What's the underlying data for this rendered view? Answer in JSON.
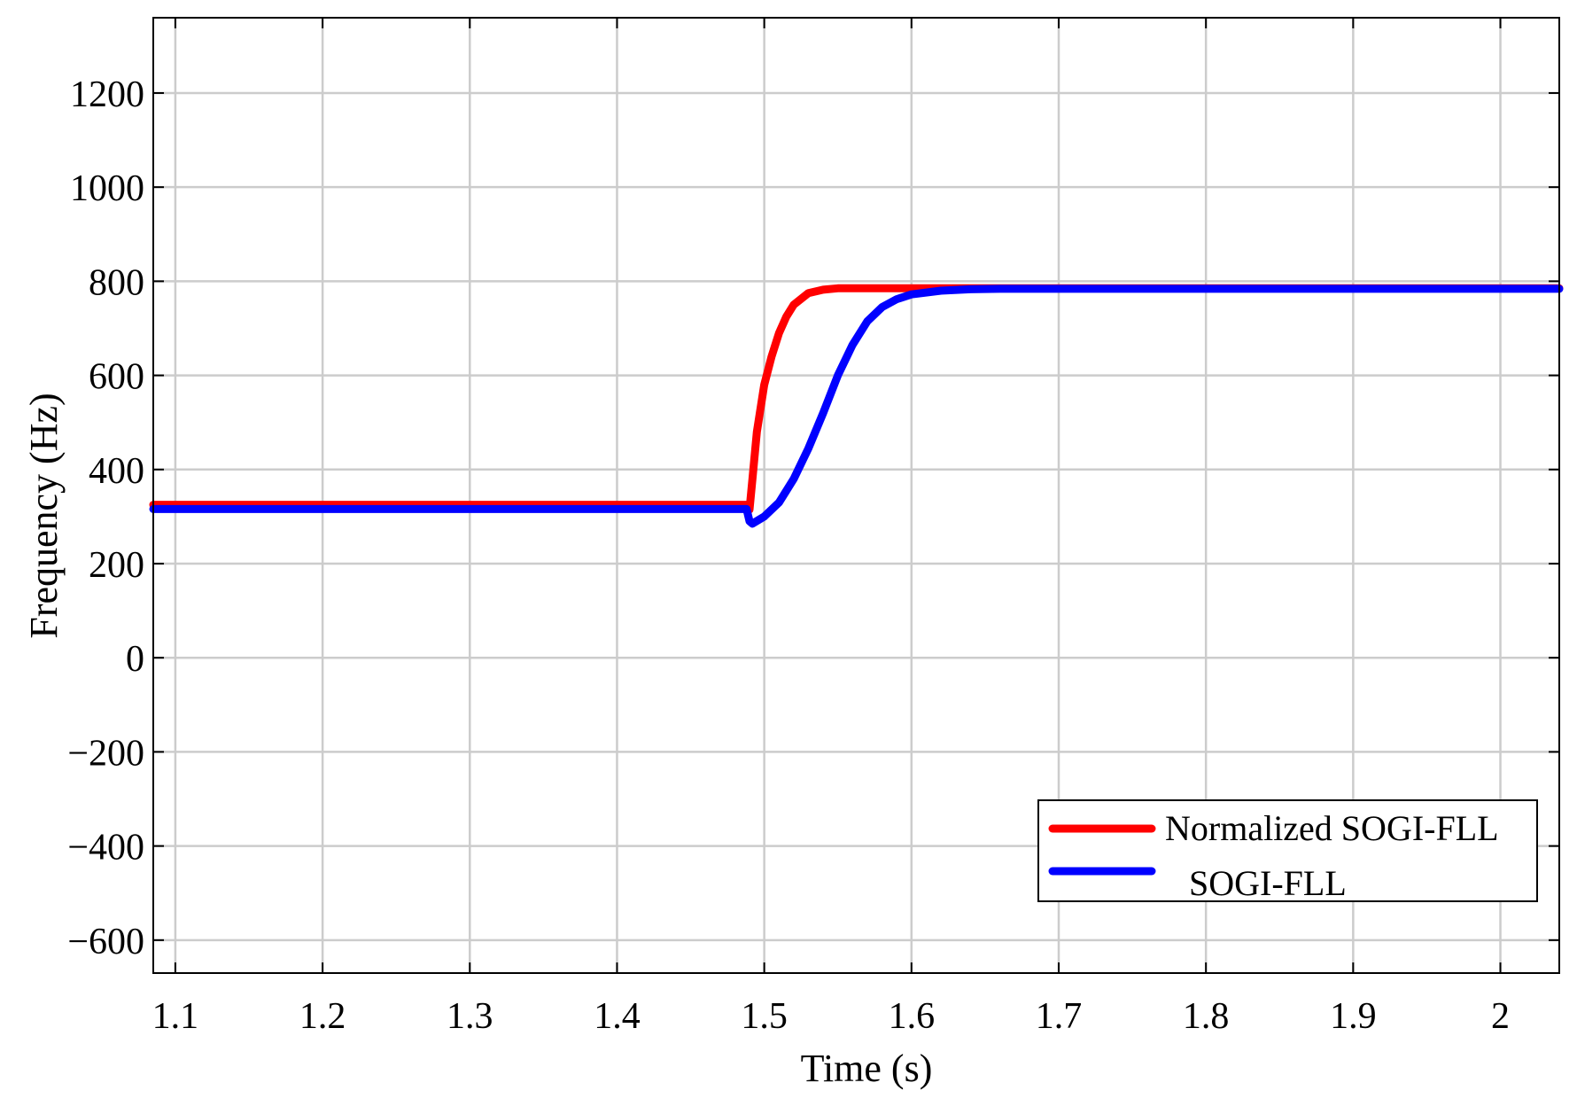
{
  "chart_data": {
    "type": "line",
    "title": "",
    "xlabel": "Time (s)",
    "ylabel": "Frequency (Hz)",
    "xlim": [
      1.085,
      2.04
    ],
    "ylim": [
      -670,
      1360
    ],
    "xticks": [
      1.1,
      1.2,
      1.3,
      1.4,
      1.5,
      1.6,
      1.7,
      1.8,
      1.9,
      2
    ],
    "xtick_labels": [
      "1.1",
      "1.2",
      "1.3",
      "1.4",
      "1.5",
      "1.6",
      "1.7",
      "1.8",
      "1.9",
      "2"
    ],
    "yticks": [
      1200,
      1000,
      800,
      600,
      400,
      200,
      0,
      -200,
      -400,
      -600
    ],
    "ytick_labels": [
      "1200",
      "1000",
      "800",
      "600",
      "400",
      "200",
      "0",
      "−200",
      "−400",
      "−600"
    ],
    "grid": true,
    "legend_position": "bottom-right",
    "series": [
      {
        "name": "Normalized SOGI-FLL",
        "color": "#ff0000",
        "x": [
          1.085,
          1.489,
          1.49,
          1.492,
          1.495,
          1.5,
          1.505,
          1.51,
          1.515,
          1.52,
          1.53,
          1.54,
          1.55,
          1.56,
          1.57,
          1.6,
          1.7,
          1.8,
          1.9,
          2.04
        ],
        "y": [
          325,
          325,
          315,
          380,
          480,
          580,
          640,
          690,
          725,
          750,
          775,
          782,
          785,
          785,
          785,
          785,
          785,
          785,
          785,
          785
        ]
      },
      {
        "name": "SOGI-FLL",
        "color": "#0000ff",
        "x": [
          1.085,
          1.488,
          1.49,
          1.492,
          1.5,
          1.51,
          1.52,
          1.53,
          1.54,
          1.55,
          1.56,
          1.57,
          1.58,
          1.59,
          1.6,
          1.62,
          1.64,
          1.66,
          1.7,
          1.8,
          1.9,
          2.04
        ],
        "y": [
          316,
          316,
          290,
          285,
          300,
          330,
          380,
          445,
          520,
          600,
          665,
          715,
          745,
          762,
          772,
          780,
          783,
          784,
          784,
          784,
          784,
          784
        ]
      }
    ]
  }
}
